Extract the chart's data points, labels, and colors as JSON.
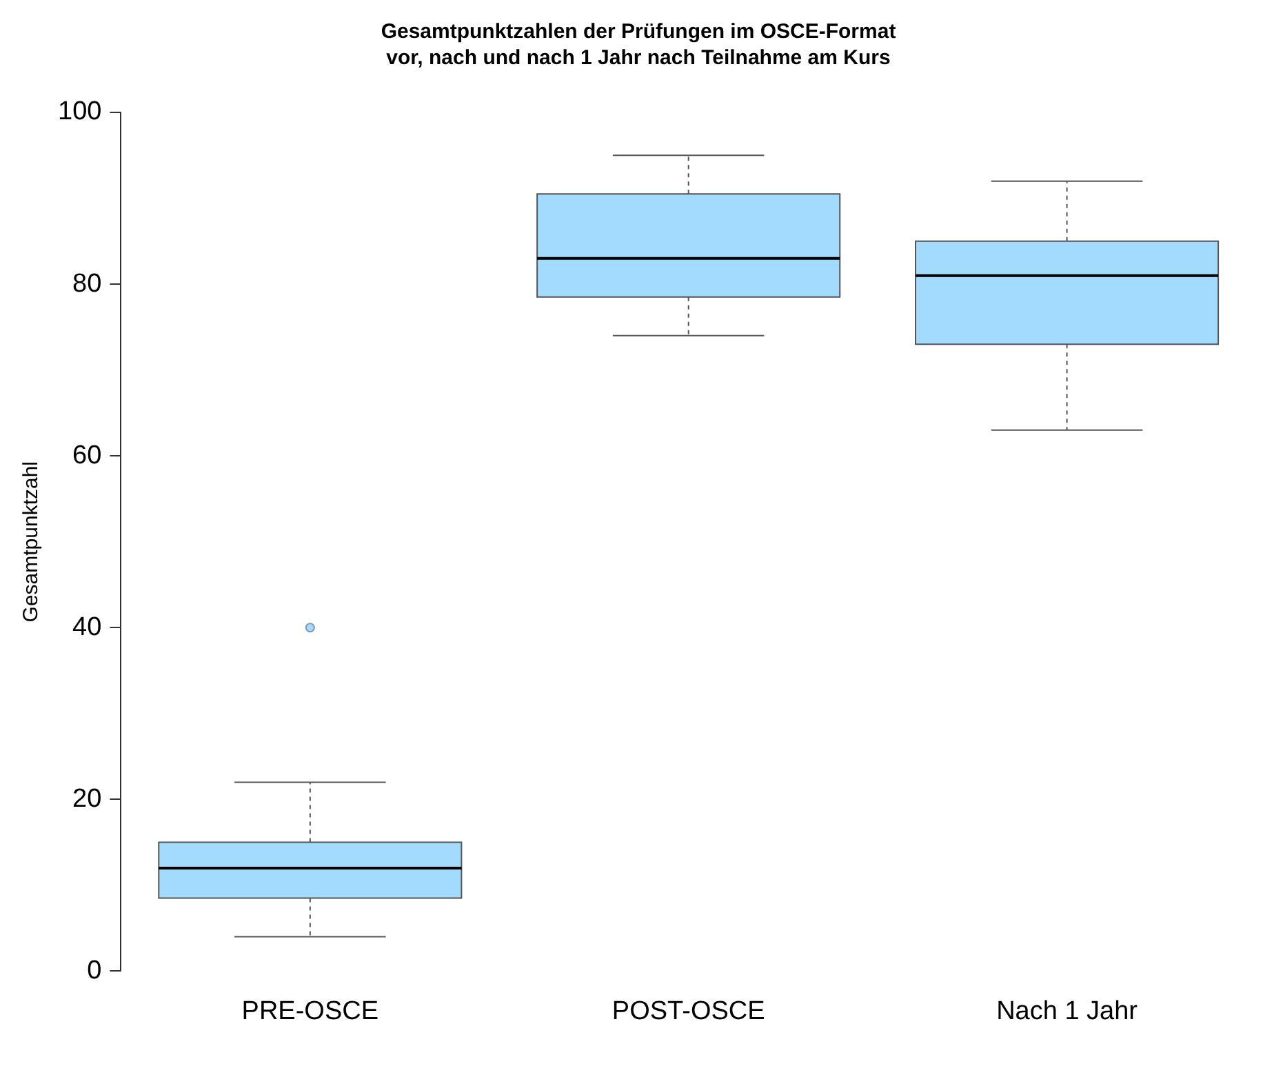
{
  "chart_data": {
    "type": "box",
    "title": "Gesamtpunktzahlen der Prüfungen im OSCE-Format\nvor, nach und nach 1 Jahr nach Teilnahme am Kurs",
    "ylabel": "Gesamtpunktzahl",
    "categories": [
      "PRE-OSCE",
      "POST-OSCE",
      "Nach 1 Jahr"
    ],
    "color": "#a3dbfe",
    "boxes": [
      {
        "low": 4,
        "q1": 8.5,
        "median": 12,
        "q3": 15,
        "high": 22,
        "outliers": [
          40
        ]
      },
      {
        "low": 74,
        "q1": 78.5,
        "median": 83,
        "q3": 90.5,
        "high": 95
      },
      {
        "low": 63,
        "q1": 73,
        "median": 81,
        "q3": 85,
        "high": 92
      }
    ],
    "ylim": [
      0,
      100
    ],
    "yticks": [
      0,
      20,
      40,
      60,
      80,
      100
    ],
    "grid": false,
    "legend": false
  }
}
